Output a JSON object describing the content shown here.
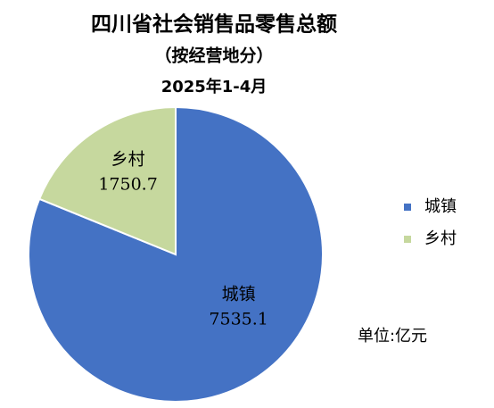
{
  "chart_data": {
    "type": "pie",
    "title": "四川省社会销售品零售总额",
    "subtitle": "（按经营地分）",
    "period": "2025年1-4月",
    "categories": [
      "城镇",
      "乡村"
    ],
    "values": [
      7535.1,
      1750.7
    ],
    "colors": [
      "#4472c4",
      "#c6d89e"
    ],
    "legend": "right",
    "note": "单位:亿元"
  }
}
